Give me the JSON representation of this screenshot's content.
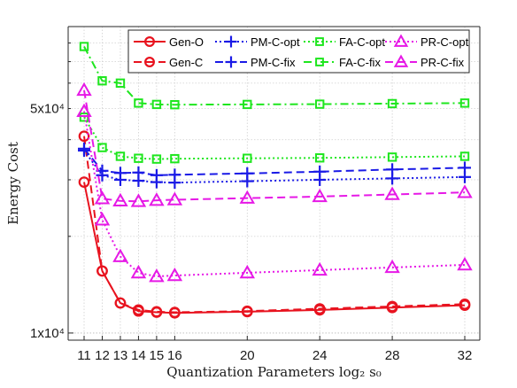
{
  "chart_data": {
    "type": "line",
    "xlabel": "Quantization Parameters log₂ s₀",
    "ylabel": "Energy Cost",
    "x": [
      11,
      12,
      13,
      14,
      15,
      16,
      20,
      24,
      28,
      32
    ],
    "x_ticks": [
      "11",
      "12",
      "13",
      "14",
      "15",
      "16",
      "20",
      "24",
      "28",
      "32"
    ],
    "y_scale": "log",
    "ylim": [
      9500,
      90000
    ],
    "y_ticks": [
      {
        "value": 10000,
        "label": "1x10⁴"
      },
      {
        "value": 50000,
        "label": "5x10⁴"
      }
    ],
    "grid": true,
    "legend_position": "top-right",
    "series": [
      {
        "name": "Gen-O",
        "color": "#e8131f",
        "dash": "solid",
        "marker": "circle",
        "values": [
          29500,
          15600,
          12400,
          11700,
          11600,
          11550,
          11650,
          11800,
          12000,
          12200
        ]
      },
      {
        "name": "Gen-C",
        "color": "#e8131f",
        "dash": "dash",
        "marker": "circle",
        "values": [
          41000,
          15600,
          12400,
          11800,
          11650,
          11600,
          11700,
          11900,
          12100,
          12300
        ]
      },
      {
        "name": "PM-C-opt",
        "color": "#1a1ae6",
        "dash": "dot",
        "marker": "plus",
        "values": [
          37000,
          31000,
          30000,
          29800,
          29500,
          29400,
          29700,
          30000,
          30300,
          30600
        ]
      },
      {
        "name": "PM-C-fix",
        "color": "#1a1ae6",
        "dash": "dash",
        "marker": "plus",
        "values": [
          37500,
          32000,
          31500,
          31600,
          31000,
          31100,
          31400,
          31800,
          32300,
          32700
        ]
      },
      {
        "name": "FA-C-opt",
        "color": "#1ee61e",
        "dash": "dot",
        "marker": "square",
        "values": [
          47000,
          37800,
          35500,
          35000,
          34800,
          34900,
          35000,
          35100,
          35300,
          35500
        ]
      },
      {
        "name": "FA-C-fix",
        "color": "#1ee61e",
        "dash": "dashdot",
        "marker": "square",
        "values": [
          78000,
          61000,
          60000,
          52000,
          51500,
          51400,
          51500,
          51600,
          51800,
          52000
        ]
      },
      {
        "name": "PR-C-opt",
        "color": "#e619e6",
        "dash": "dot",
        "marker": "triangle",
        "values": [
          49000,
          22500,
          17300,
          15400,
          15000,
          15100,
          15400,
          15700,
          16000,
          16300
        ]
      },
      {
        "name": "PR-C-fix",
        "color": "#e619e6",
        "dash": "dash",
        "marker": "triangle",
        "values": [
          57000,
          26200,
          25800,
          25700,
          25900,
          26000,
          26300,
          26600,
          27000,
          27400
        ]
      }
    ]
  }
}
